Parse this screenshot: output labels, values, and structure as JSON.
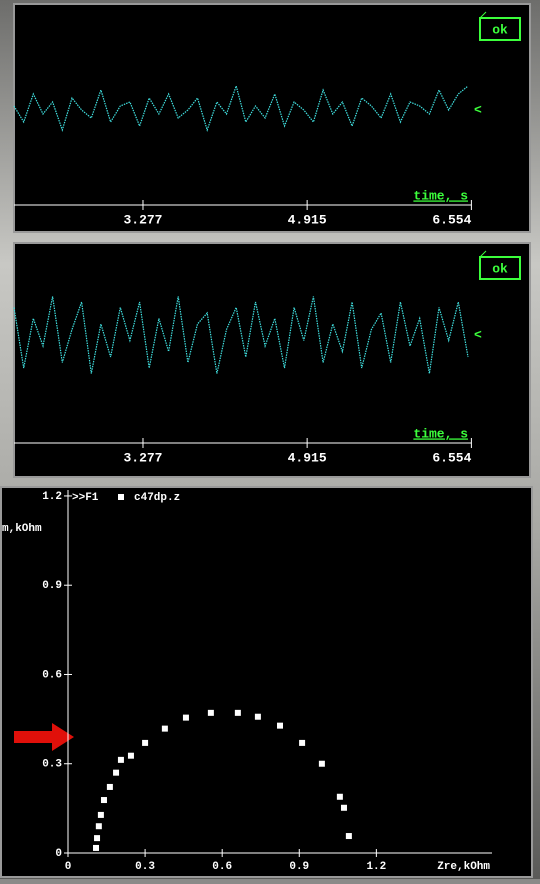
{
  "chart_data": [
    {
      "type": "line",
      "x_label": "time, s",
      "button_label": "ok",
      "cursor": "<",
      "xlim": [
        1.99,
        6.6
      ],
      "xticks": [
        3.277,
        4.915,
        6.554
      ],
      "ylim": [
        -1,
        1
      ],
      "color": "#40e0e0",
      "values": [
        0.1,
        -0.3,
        0.4,
        -0.1,
        0.2,
        -0.5,
        0.3,
        0.0,
        -0.2,
        0.5,
        -0.3,
        0.1,
        0.2,
        -0.4,
        0.3,
        -0.1,
        0.4,
        -0.2,
        0.0,
        0.3,
        -0.5,
        0.2,
        -0.1,
        0.6,
        -0.3,
        0.1,
        -0.2,
        0.4,
        -0.4,
        0.2,
        0.0,
        -0.3,
        0.5,
        -0.1,
        0.2,
        -0.4,
        0.3,
        0.1,
        -0.2,
        0.4,
        -0.3,
        0.2,
        0.1,
        -0.1,
        0.5,
        0.0,
        0.4,
        0.6
      ]
    },
    {
      "type": "line",
      "x_label": "time, s",
      "button_label": "ok",
      "cursor": "<",
      "xlim": [
        1.99,
        6.6
      ],
      "xticks": [
        3.277,
        4.915,
        6.554
      ],
      "ylim": [
        -1,
        1
      ],
      "color": "#40e0e0",
      "values": [
        0.5,
        -0.6,
        0.3,
        -0.2,
        0.7,
        -0.5,
        0.1,
        0.6,
        -0.7,
        0.2,
        -0.4,
        0.5,
        -0.1,
        0.6,
        -0.6,
        0.3,
        -0.3,
        0.7,
        -0.5,
        0.2,
        0.4,
        -0.7,
        0.1,
        0.5,
        -0.4,
        0.6,
        -0.2,
        0.3,
        -0.6,
        0.5,
        -0.1,
        0.7,
        -0.5,
        0.2,
        -0.3,
        0.6,
        -0.6,
        0.1,
        0.4,
        -0.5,
        0.6,
        -0.2,
        0.3,
        -0.7,
        0.5,
        -0.1,
        0.6,
        -0.4
      ]
    },
    {
      "type": "scatter",
      "x_label": "Zre,kOhm",
      "y_label": "m,kOhm",
      "legend_prefix": ">>F1",
      "xlim": [
        0,
        1.65
      ],
      "xticks": [
        0,
        0.3,
        0.6,
        0.9,
        1.2
      ],
      "ylim": [
        0,
        1.22
      ],
      "yticks": [
        0,
        0.3,
        0.6,
        0.9,
        1.2
      ],
      "series": [
        {
          "name": "c47dp.z",
          "color": "#ffffff",
          "x": [
            0.109,
            0.113,
            0.12,
            0.128,
            0.14,
            0.163,
            0.187,
            0.206,
            0.245,
            0.3,
            0.377,
            0.459,
            0.556,
            0.661,
            0.739,
            0.825,
            0.911,
            0.988,
            1.058,
            1.074,
            1.093
          ],
          "values": [
            0.017,
            0.05,
            0.09,
            0.128,
            0.178,
            0.222,
            0.27,
            0.313,
            0.327,
            0.37,
            0.418,
            0.455,
            0.471,
            0.471,
            0.458,
            0.428,
            0.37,
            0.3,
            0.189,
            0.152,
            0.057
          ]
        }
      ]
    }
  ]
}
